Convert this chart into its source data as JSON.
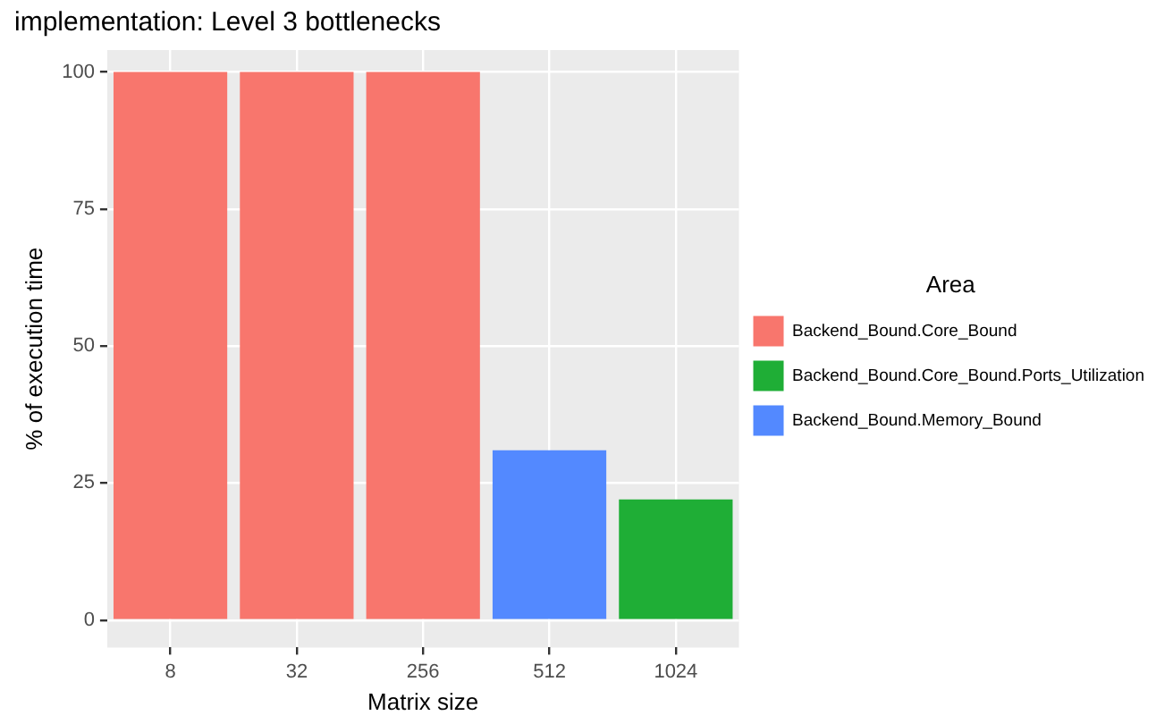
{
  "chart_data": {
    "type": "bar",
    "title": "implementation: Level 3 bottlenecks",
    "xlabel": "Matrix size",
    "ylabel": "% of execution time",
    "legend_title": "Area",
    "categories": [
      "8",
      "32",
      "256",
      "512",
      "1024"
    ],
    "series": [
      {
        "name": "Backend_Bound.Core_Bound",
        "color": "#f8766d",
        "values": [
          100,
          100,
          100,
          null,
          null
        ]
      },
      {
        "name": "Backend_Bound.Core_Bound.Ports_Utilization",
        "color": "#1fae36",
        "values": [
          null,
          null,
          null,
          null,
          22
        ]
      },
      {
        "name": "Backend_Bound.Memory_Bound",
        "color": "#5389ff",
        "values": [
          null,
          null,
          null,
          31,
          null
        ]
      }
    ],
    "stacked": true,
    "ylim": [
      -5,
      104
    ],
    "yticks": [
      0,
      25,
      50,
      75,
      100
    ],
    "grid": true,
    "legend": "right"
  }
}
